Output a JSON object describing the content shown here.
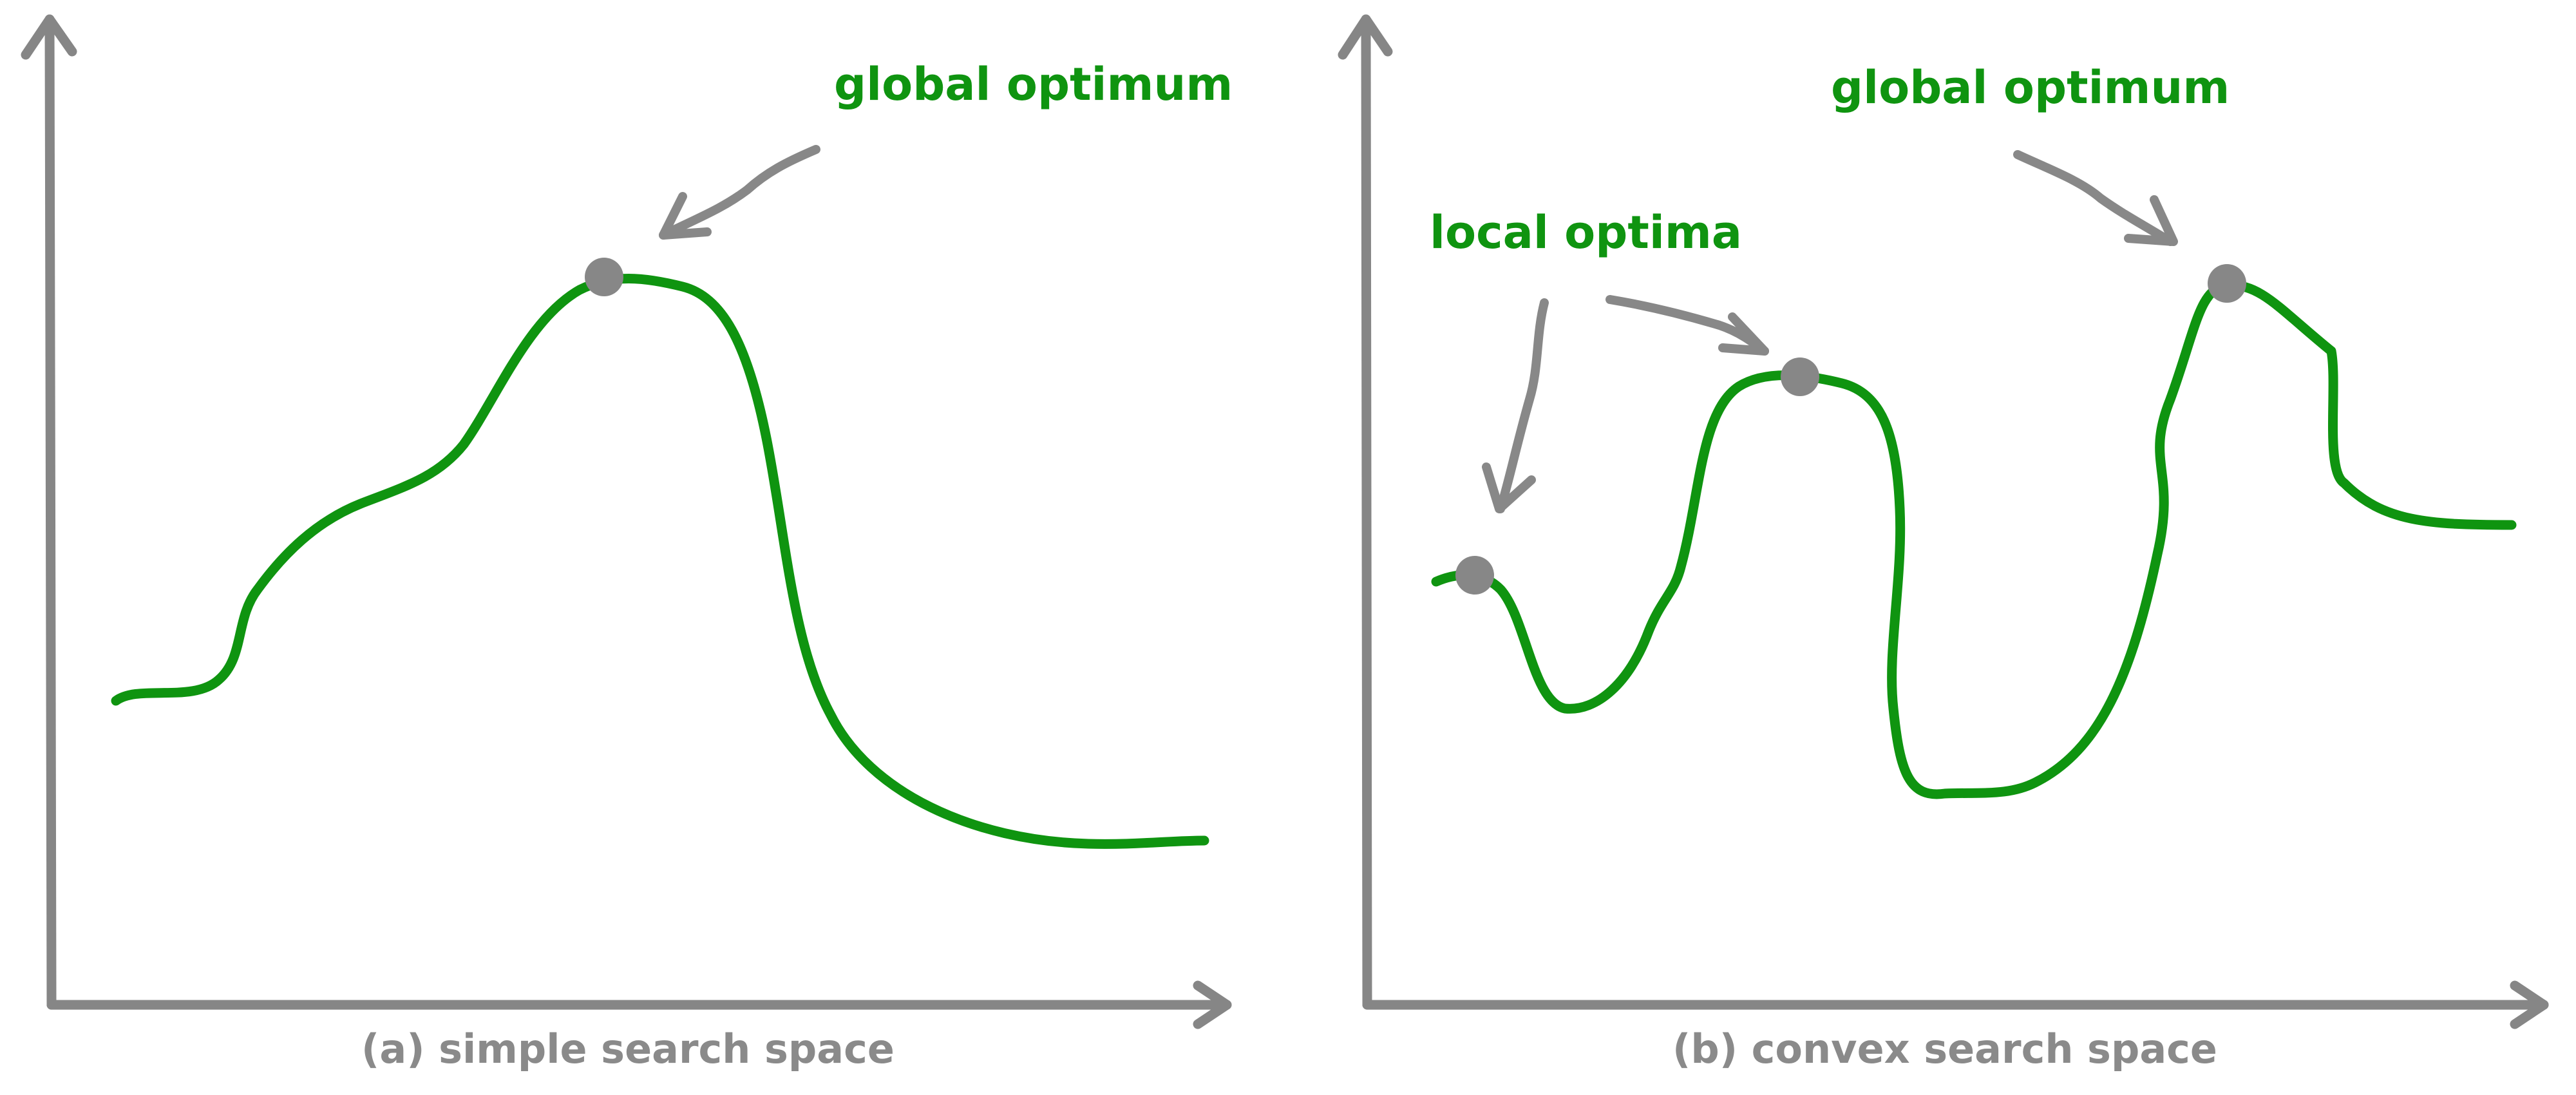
{
  "panels": [
    {
      "id": "a",
      "caption": "(a) simple search space",
      "annotations": [
        {
          "text": "global optimum"
        }
      ]
    },
    {
      "id": "b",
      "caption": "(b) convex search space",
      "annotations": [
        {
          "text": "global optimum"
        },
        {
          "text": "local optima"
        }
      ]
    }
  ],
  "colors": {
    "curve": "#0f9410",
    "label": "#0f9410",
    "axis": "#868686",
    "marker": "#878787",
    "arrow": "#888888",
    "caption": "#8a8a8a",
    "background": "#ffffff"
  }
}
